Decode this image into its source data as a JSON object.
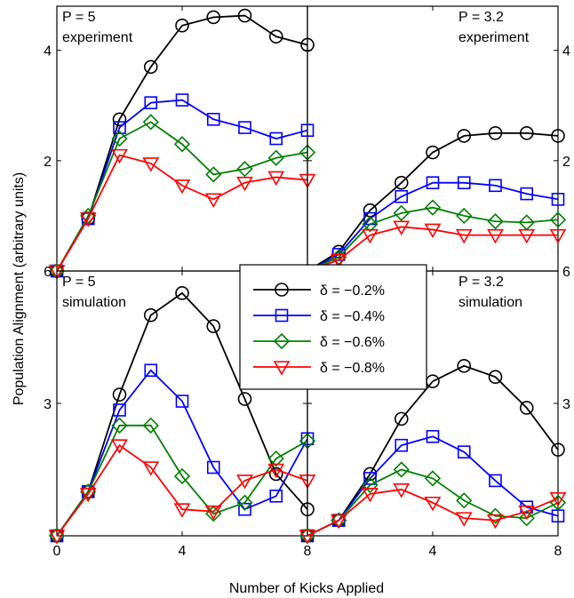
{
  "figure": {
    "xlabel": "Number of Kicks Applied",
    "ylabel": "Population Alignment (arbitrary units)"
  },
  "legend": {
    "placement": "center",
    "entries": [
      {
        "label": "δ = −0.2%",
        "color": "#000000",
        "marker": "circle"
      },
      {
        "label": "δ = −0.4%",
        "color": "#0000ff",
        "marker": "square"
      },
      {
        "label": "δ = −0.6%",
        "color": "#008000",
        "marker": "diamond"
      },
      {
        "label": "δ = −0.8%",
        "color": "#ff0000",
        "marker": "triangle-down"
      }
    ]
  },
  "chart_data": [
    {
      "type": "line",
      "panel": "top-left",
      "annotation": [
        "P = 5",
        "experiment"
      ],
      "x": [
        0,
        1,
        2,
        3,
        4,
        5,
        6,
        7,
        8
      ],
      "xlim": [
        0,
        8
      ],
      "ylim": [
        0,
        4.8
      ],
      "xticks": [],
      "yticks": [
        {
          "value": 2,
          "label": "2"
        },
        {
          "value": 4,
          "label": "4"
        }
      ],
      "ytick_side": "left",
      "series": [
        {
          "name": "δ = −0.2%",
          "values": [
            0,
            0.95,
            2.75,
            3.7,
            4.45,
            4.6,
            4.63,
            4.25,
            4.1
          ]
        },
        {
          "name": "δ = −0.4%",
          "values": [
            0,
            0.95,
            2.6,
            3.05,
            3.1,
            2.75,
            2.6,
            2.4,
            2.55
          ]
        },
        {
          "name": "δ = −0.6%",
          "values": [
            0,
            1.0,
            2.4,
            2.7,
            2.3,
            1.75,
            1.85,
            2.05,
            2.15
          ]
        },
        {
          "name": "δ = −0.8%",
          "values": [
            0,
            0.95,
            2.1,
            1.95,
            1.55,
            1.3,
            1.6,
            1.7,
            1.65
          ]
        }
      ]
    },
    {
      "type": "line",
      "panel": "top-right",
      "annotation": [
        "P = 3.2",
        "experiment"
      ],
      "x": [
        0,
        1,
        2,
        3,
        4,
        5,
        6,
        7,
        8
      ],
      "xlim": [
        0,
        8
      ],
      "ylim": [
        0,
        4.8
      ],
      "xticks": [],
      "yticks": [
        {
          "value": 2,
          "label": "2"
        },
        {
          "value": 4,
          "label": "4"
        }
      ],
      "ytick_side": "right",
      "series": [
        {
          "name": "δ = −0.2%",
          "values": [
            0,
            0.35,
            1.1,
            1.6,
            2.15,
            2.45,
            2.5,
            2.5,
            2.45
          ]
        },
        {
          "name": "δ = −0.4%",
          "values": [
            0,
            0.3,
            0.95,
            1.35,
            1.6,
            1.6,
            1.55,
            1.4,
            1.3
          ]
        },
        {
          "name": "δ = −0.6%",
          "values": [
            0,
            0.25,
            0.85,
            1.05,
            1.15,
            1.0,
            0.9,
            0.88,
            0.93
          ]
        },
        {
          "name": "δ = −0.8%",
          "values": [
            0,
            0.2,
            0.65,
            0.8,
            0.75,
            0.65,
            0.65,
            0.65,
            0.65
          ]
        }
      ]
    },
    {
      "type": "line",
      "panel": "bottom-left",
      "annotation": [
        "P = 5",
        "simulation"
      ],
      "x": [
        0,
        1,
        2,
        3,
        4,
        5,
        6,
        7,
        8
      ],
      "xlim": [
        0,
        8
      ],
      "ylim": [
        0,
        6
      ],
      "xticks": [
        {
          "value": 0,
          "label": "0"
        },
        {
          "value": 4,
          "label": "4"
        },
        {
          "value": 8,
          "label": "8"
        }
      ],
      "yticks": [
        {
          "value": 3,
          "label": "3"
        },
        {
          "value": 6,
          "label": "6"
        }
      ],
      "ytick_side": "left",
      "series": [
        {
          "name": "δ = −0.2%",
          "values": [
            0,
            1.0,
            3.2,
            5.0,
            5.5,
            4.75,
            3.1,
            1.4,
            0.6
          ]
        },
        {
          "name": "δ = −0.4%",
          "values": [
            0,
            1.0,
            2.85,
            3.75,
            3.05,
            1.55,
            0.6,
            0.9,
            2.2
          ]
        },
        {
          "name": "δ = −0.6%",
          "values": [
            0,
            1.0,
            2.5,
            2.5,
            1.35,
            0.5,
            0.75,
            1.75,
            2.15
          ]
        },
        {
          "name": "δ = −0.8%",
          "values": [
            0,
            0.95,
            2.05,
            1.55,
            0.6,
            0.55,
            1.25,
            1.5,
            1.25
          ]
        }
      ]
    },
    {
      "type": "line",
      "panel": "bottom-right",
      "annotation": [
        "P = 3.2",
        "simulation"
      ],
      "x": [
        0,
        1,
        2,
        3,
        4,
        5,
        6,
        7,
        8
      ],
      "xlim": [
        0,
        8
      ],
      "ylim": [
        0,
        6
      ],
      "xticks": [
        {
          "value": 4,
          "label": "4"
        },
        {
          "value": 8,
          "label": "8"
        }
      ],
      "yticks": [
        {
          "value": 3,
          "label": "3"
        },
        {
          "value": 6,
          "label": "6"
        }
      ],
      "ytick_side": "right",
      "series": [
        {
          "name": "δ = −0.2%",
          "values": [
            0,
            0.35,
            1.4,
            2.65,
            3.5,
            3.85,
            3.6,
            2.9,
            1.95
          ]
        },
        {
          "name": "δ = −0.4%",
          "values": [
            0,
            0.35,
            1.3,
            2.05,
            2.25,
            1.9,
            1.25,
            0.65,
            0.45
          ]
        },
        {
          "name": "δ = −0.6%",
          "values": [
            0,
            0.35,
            1.15,
            1.5,
            1.3,
            0.8,
            0.45,
            0.4,
            0.75
          ]
        },
        {
          "name": "δ = −0.8%",
          "values": [
            0,
            0.35,
            0.95,
            1.05,
            0.75,
            0.4,
            0.35,
            0.55,
            0.85
          ]
        }
      ]
    }
  ]
}
